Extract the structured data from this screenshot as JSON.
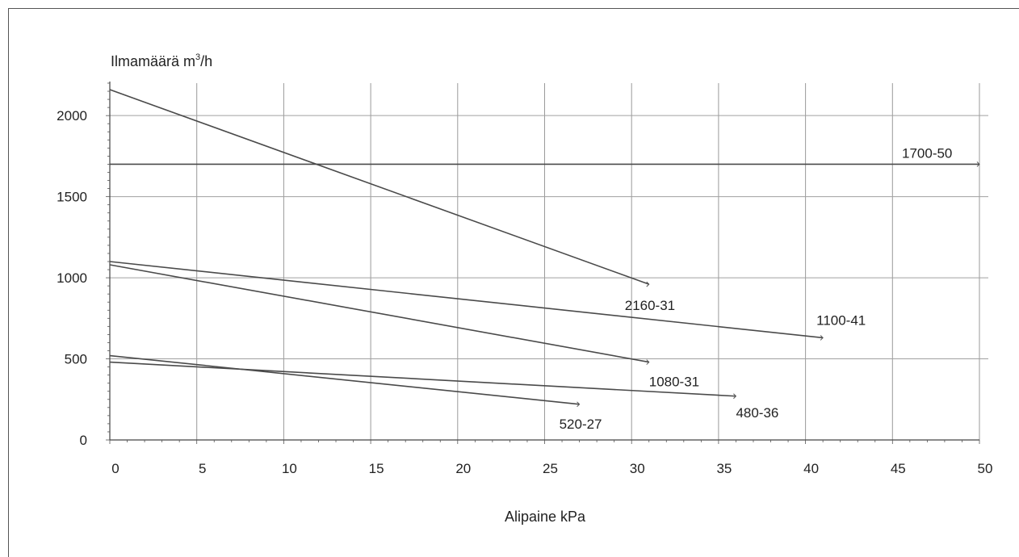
{
  "chart_data": {
    "type": "line",
    "ylabel_prefix": "Ilmamäärä m",
    "ylabel_sup": "3",
    "ylabel_suffix": "/h",
    "xlabel": "Alipaine kPa",
    "xlim": [
      0,
      50
    ],
    "ylim": [
      0,
      2200
    ],
    "x_ticks": [
      0,
      5,
      10,
      15,
      20,
      25,
      30,
      35,
      40,
      45,
      50
    ],
    "y_ticks": [
      0,
      500,
      1000,
      1500,
      2000
    ],
    "grid": true,
    "series": [
      {
        "name": "2160-31",
        "x": [
          0,
          31
        ],
        "y": [
          2160,
          960
        ]
      },
      {
        "name": "1700-50",
        "x": [
          0,
          50
        ],
        "y": [
          1700,
          1700
        ]
      },
      {
        "name": "1100-41",
        "x": [
          0,
          41
        ],
        "y": [
          1100,
          630
        ]
      },
      {
        "name": "1080-31",
        "x": [
          0,
          31
        ],
        "y": [
          1080,
          480
        ]
      },
      {
        "name": "480-36",
        "x": [
          0,
          36
        ],
        "y": [
          480,
          270
        ]
      },
      {
        "name": "520-27",
        "x": [
          0,
          27
        ],
        "y": [
          520,
          220
        ]
      }
    ]
  }
}
